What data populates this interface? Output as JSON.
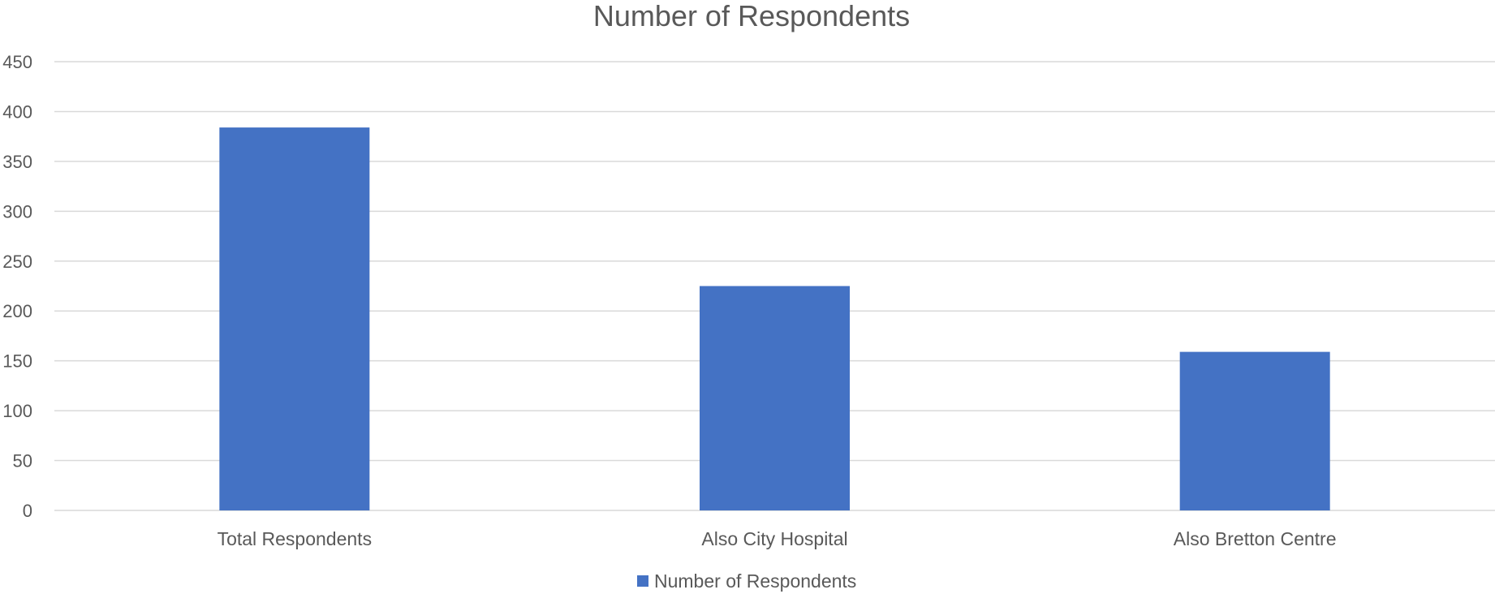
{
  "chart_data": {
    "type": "bar",
    "title": "Number of Respondents",
    "categories": [
      "Total Respondents",
      "Also City Hospital",
      "Also Bretton Centre"
    ],
    "series": [
      {
        "name": "Number of Respondents",
        "values": [
          384,
          225,
          159
        ],
        "color": "#4472C4"
      }
    ],
    "xlabel": "",
    "ylabel": "",
    "ylim": [
      0,
      450
    ],
    "yticks": [
      0,
      50,
      100,
      150,
      200,
      250,
      300,
      350,
      400,
      450
    ],
    "grid": true,
    "legend": "bottom"
  }
}
